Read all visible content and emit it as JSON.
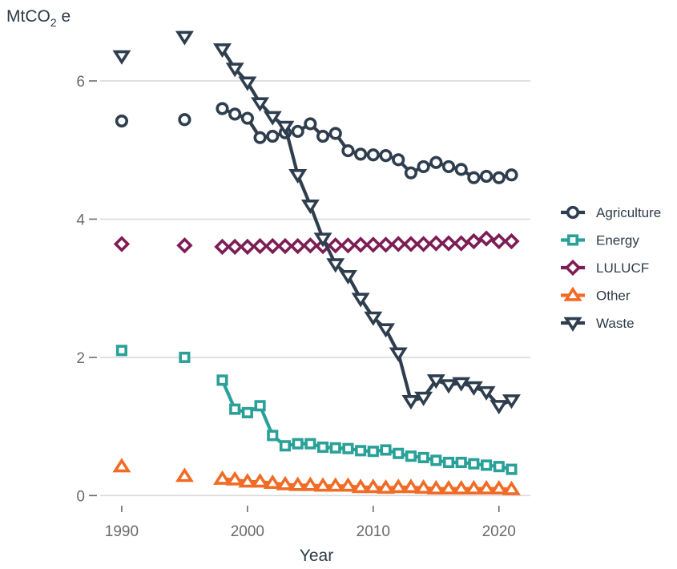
{
  "chart_data": {
    "type": "line",
    "title": "",
    "ylabel_main": "MtCO",
    "ylabel_sub": "2",
    "ylabel_suffix": " e",
    "xlabel": "Year",
    "xlim": [
      1986.5,
      2022.5
    ],
    "ylim": [
      -0.1,
      6.8
    ],
    "x_ticks": [
      1990,
      2000,
      2010,
      2020
    ],
    "y_ticks": [
      0,
      2,
      4,
      6
    ],
    "grid": "horizontal",
    "legend_position": "right",
    "series": [
      {
        "name": "Agriculture",
        "color": "#2f3e4e",
        "marker": "circle",
        "x": [
          1990,
          1995,
          1998,
          1999,
          2000,
          2001,
          2002,
          2003,
          2004,
          2005,
          2006,
          2007,
          2008,
          2009,
          2010,
          2011,
          2012,
          2013,
          2014,
          2015,
          2016,
          2017,
          2018,
          2019,
          2020,
          2021
        ],
        "y": [
          5.42,
          5.44,
          5.6,
          5.52,
          5.46,
          5.18,
          5.2,
          5.25,
          5.27,
          5.38,
          5.2,
          5.24,
          4.99,
          4.94,
          4.93,
          4.92,
          4.86,
          4.67,
          4.76,
          4.82,
          4.76,
          4.72,
          4.6,
          4.62,
          4.6,
          4.64
        ]
      },
      {
        "name": "Energy",
        "color": "#2aa198",
        "marker": "square",
        "x": [
          1990,
          1995,
          1998,
          1999,
          2000,
          2001,
          2002,
          2003,
          2004,
          2005,
          2006,
          2007,
          2008,
          2009,
          2010,
          2011,
          2012,
          2013,
          2014,
          2015,
          2016,
          2017,
          2018,
          2019,
          2020,
          2021
        ],
        "y": [
          2.1,
          2.0,
          1.67,
          1.25,
          1.2,
          1.3,
          0.87,
          0.72,
          0.75,
          0.75,
          0.7,
          0.69,
          0.68,
          0.65,
          0.64,
          0.66,
          0.61,
          0.57,
          0.55,
          0.51,
          0.48,
          0.48,
          0.46,
          0.44,
          0.42,
          0.38
        ]
      },
      {
        "name": "LULUCF",
        "color": "#7d1d56",
        "marker": "diamond",
        "x": [
          1990,
          1995,
          1998,
          1999,
          2000,
          2001,
          2002,
          2003,
          2004,
          2005,
          2006,
          2007,
          2008,
          2009,
          2010,
          2011,
          2012,
          2013,
          2014,
          2015,
          2016,
          2017,
          2018,
          2019,
          2020,
          2021
        ],
        "y": [
          3.64,
          3.62,
          3.6,
          3.6,
          3.6,
          3.61,
          3.61,
          3.61,
          3.61,
          3.62,
          3.61,
          3.62,
          3.62,
          3.63,
          3.63,
          3.63,
          3.64,
          3.64,
          3.64,
          3.65,
          3.65,
          3.65,
          3.68,
          3.72,
          3.68,
          3.68
        ]
      },
      {
        "name": "Other",
        "color": "#f06c26",
        "marker": "triangle-up",
        "x": [
          1990,
          1995,
          1998,
          1999,
          2000,
          2001,
          2002,
          2003,
          2004,
          2005,
          2006,
          2007,
          2008,
          2009,
          2010,
          2011,
          2012,
          2013,
          2014,
          2015,
          2016,
          2017,
          2018,
          2019,
          2020,
          2021
        ],
        "y": [
          0.42,
          0.28,
          0.24,
          0.23,
          0.2,
          0.2,
          0.18,
          0.16,
          0.15,
          0.15,
          0.14,
          0.14,
          0.14,
          0.12,
          0.12,
          0.11,
          0.12,
          0.12,
          0.11,
          0.1,
          0.1,
          0.1,
          0.1,
          0.1,
          0.1,
          0.09
        ]
      },
      {
        "name": "Waste",
        "color": "#2f3e4e",
        "marker": "triangle-down",
        "x": [
          1990,
          1995,
          1998,
          1999,
          2000,
          2001,
          2002,
          2003,
          2004,
          2005,
          2006,
          2007,
          2008,
          2009,
          2010,
          2011,
          2012,
          2013,
          2014,
          2015,
          2016,
          2017,
          2018,
          2019,
          2020,
          2021
        ],
        "y": [
          6.36,
          6.64,
          6.46,
          6.18,
          5.98,
          5.68,
          5.48,
          5.34,
          4.64,
          4.2,
          3.72,
          3.35,
          3.18,
          2.85,
          2.58,
          2.41,
          2.06,
          1.37,
          1.42,
          1.67,
          1.6,
          1.63,
          1.57,
          1.5,
          1.3,
          1.38
        ]
      }
    ]
  }
}
